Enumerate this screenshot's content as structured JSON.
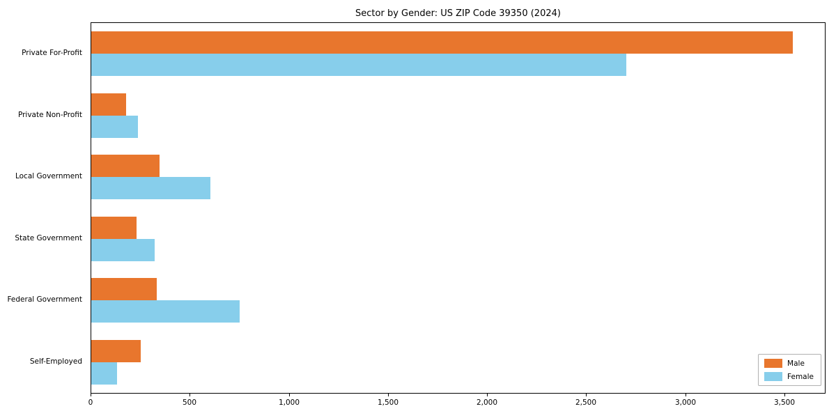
{
  "title": "Sector by Gender: US ZIP Code 39350 (2024)",
  "chart_data": {
    "type": "bar",
    "orientation": "horizontal",
    "title": "Sector by Gender: US ZIP Code 39350 (2024)",
    "categories": [
      "Private For-Profit",
      "Private Non-Profit",
      "Local Government",
      "State Government",
      "Federal Government",
      "Self-Employed"
    ],
    "series": [
      {
        "name": "Male",
        "color": "#e8762d",
        "values": [
          3540,
          175,
          345,
          230,
          330,
          250
        ]
      },
      {
        "name": "Female",
        "color": "#87ceeb",
        "values": [
          2700,
          235,
          600,
          320,
          750,
          130
        ]
      }
    ],
    "xlim": [
      0,
      3700
    ],
    "xticks": [
      0,
      500,
      1000,
      1500,
      2000,
      2500,
      3000,
      3500
    ],
    "xtick_labels": [
      "0",
      "500",
      "1,000",
      "1,500",
      "2,000",
      "2,500",
      "3,000",
      "3,500"
    ],
    "xlabel": "",
    "ylabel": "",
    "grid": false,
    "legend_position": "lower right"
  },
  "legend": {
    "items": [
      {
        "label": "Male",
        "color": "#e8762d"
      },
      {
        "label": "Female",
        "color": "#87ceeb"
      }
    ]
  }
}
